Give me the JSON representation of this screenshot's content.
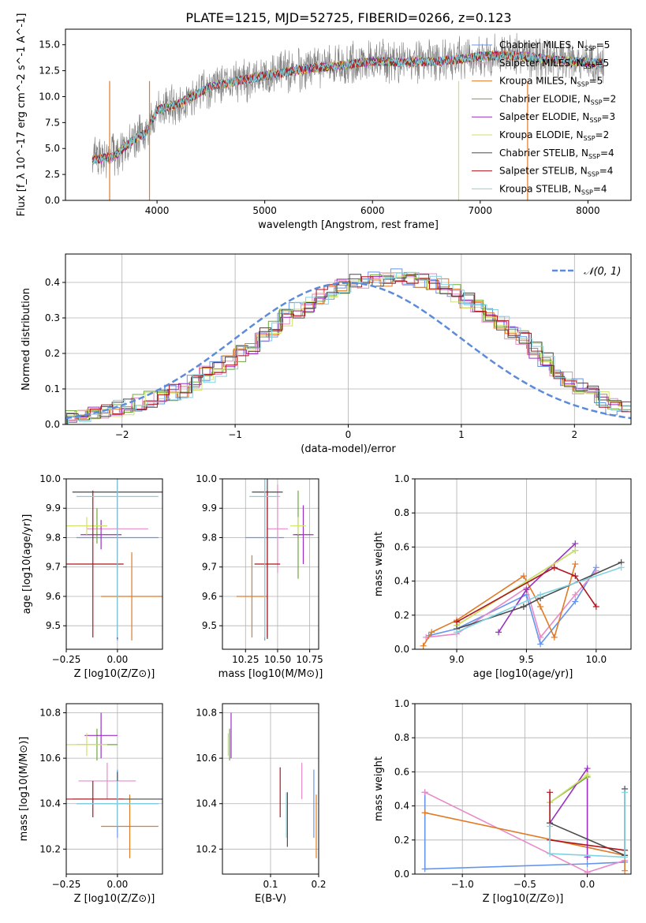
{
  "figure_title": "PLATE=1215, MJD=52725, FIBERID=0266, z=0.123",
  "colors": {
    "Chabrier MILES": "#6495ed",
    "Salpeter MILES": "#e88ac8",
    "Kroupa MILES": "#e07b27",
    "Chabrier ELODIE": "#6fa83c",
    "Salpeter ELODIE": "#9b30c0",
    "Kroupa ELODIE": "#cfe26a",
    "Chabrier STELIB": "#4a4a4a",
    "Salpeter STELIB": "#b0141c",
    "Kroupa STELIB": "#7fd3e0",
    "data": "#808080",
    "gaussian": "#5b8bd9"
  },
  "chart_data": [
    {
      "id": "spectrum",
      "type": "line",
      "title": "PLATE=1215, MJD=52725, FIBERID=0266, z=0.123",
      "xlabel": "wavelength [Angstrom, rest frame]",
      "ylabel": "Flux [f_λ 10^-17 erg cm^-2 s^-1 A^-1]",
      "xlim": [
        3150,
        8400
      ],
      "ylim": [
        0,
        16.5
      ],
      "xticks": [
        4000,
        5000,
        6000,
        7000,
        8000
      ],
      "yticks": [
        0.0,
        2.5,
        5.0,
        7.5,
        10.0,
        12.5,
        15.0
      ],
      "legend_position": "right",
      "legend": [
        {
          "label": "Chabrier MILES, N_SSP=5",
          "color": "#6495ed"
        },
        {
          "label": "Salpeter MILES, N_SSP=5",
          "color": "#e88ac8"
        },
        {
          "label": "Kroupa MILES, N_SSP=5",
          "color": "#e07b27"
        },
        {
          "label": "Chabrier ELODIE, N_SSP=2",
          "color": "#6fa83c"
        },
        {
          "label": "Salpeter ELODIE, N_SSP=3",
          "color": "#9b30c0"
        },
        {
          "label": "Kroupa ELODIE, N_SSP=2",
          "color": "#cfe26a"
        },
        {
          "label": "Chabrier STELIB, N_SSP=4",
          "color": "#4a4a4a"
        },
        {
          "label": "Salpeter STELIB, N_SSP=4",
          "color": "#b0141c"
        },
        {
          "label": "Kroupa STELIB, N_SSP=4",
          "color": "#7fd3e0"
        }
      ],
      "continuum_x": [
        3400,
        3600,
        3800,
        3900,
        4000,
        4200,
        4500,
        4800,
        5100,
        5400,
        5700,
        6000,
        6300,
        6600,
        6800,
        7000,
        7200,
        7400,
        7600,
        8000,
        8150
      ],
      "continuum_y": [
        3.9,
        4.2,
        6.0,
        6.5,
        8.7,
        9.3,
        11.0,
        11.6,
        12.2,
        12.7,
        13.0,
        13.4,
        13.3,
        13.4,
        13.6,
        13.9,
        14.0,
        13.9,
        13.6,
        13.3,
        13.2
      ]
    },
    {
      "id": "residual-histogram",
      "type": "bar",
      "xlabel": "(data-model)/error",
      "ylabel": "Normed distribution",
      "xlim": [
        -2.5,
        2.5
      ],
      "ylim": [
        0,
        0.48
      ],
      "xticks": [
        -2,
        -1,
        0,
        1,
        2
      ],
      "yticks": [
        0.0,
        0.1,
        0.2,
        0.3,
        0.4
      ],
      "legend": [
        {
          "label": "N(0,1)",
          "color": "#5b8bd9"
        }
      ],
      "bin_width": 0.1,
      "bin_start": -2.5,
      "heights": [
        0.025,
        0.03,
        0.035,
        0.04,
        0.045,
        0.05,
        0.06,
        0.07,
        0.08,
        0.09,
        0.1,
        0.12,
        0.14,
        0.16,
        0.18,
        0.2,
        0.22,
        0.25,
        0.27,
        0.3,
        0.32,
        0.34,
        0.36,
        0.37,
        0.39,
        0.4,
        0.4,
        0.41,
        0.41,
        0.42,
        0.41,
        0.41,
        0.4,
        0.39,
        0.37,
        0.35,
        0.33,
        0.31,
        0.29,
        0.26,
        0.24,
        0.21,
        0.18,
        0.15,
        0.13,
        0.11,
        0.09,
        0.07,
        0.05,
        0.04
      ]
    },
    {
      "id": "age-vs-z",
      "type": "scatter",
      "xlabel": "Z [log10(Z/Z⊙)]",
      "ylabel": "age [log10(age/yr)]",
      "xlim": [
        -0.25,
        0.22
      ],
      "ylim": [
        9.42,
        10.0
      ],
      "xticks": [
        -0.25,
        0.0
      ],
      "yticks": [
        9.5,
        9.6,
        9.7,
        9.8,
        9.9,
        10.0
      ],
      "points": [
        {
          "x": 0.0,
          "y": 9.8,
          "xerr": 0.2,
          "yerr": 0.35,
          "color": "#6495ed"
        },
        {
          "x": 0.0,
          "y": 9.83,
          "xerr": 0.15,
          "yerr": 0.15,
          "color": "#e88ac8"
        },
        {
          "x": 0.07,
          "y": 9.6,
          "xerr": 0.15,
          "yerr": 0.15,
          "color": "#e07b27"
        },
        {
          "x": -0.1,
          "y": 9.84,
          "xerr": 0.05,
          "yerr": 0.06,
          "color": "#6fa83c"
        },
        {
          "x": -0.08,
          "y": 9.81,
          "xerr": 0.1,
          "yerr": 0.05,
          "color": "#9b30c0"
        },
        {
          "x": -0.15,
          "y": 9.84,
          "xerr": 0.1,
          "yerr": 0.03,
          "color": "#cfe26a"
        },
        {
          "x": 0.0,
          "y": 9.955,
          "xerr": 0.22,
          "yerr": 0.5,
          "color": "#4a4a4a"
        },
        {
          "x": -0.12,
          "y": 9.71,
          "xerr": 0.15,
          "yerr": 0.25,
          "color": "#b0141c"
        },
        {
          "x": 0.0,
          "y": 9.94,
          "xerr": 0.2,
          "yerr": 0.48,
          "color": "#7fd3e0"
        }
      ]
    },
    {
      "id": "age-vs-mass",
      "type": "scatter",
      "xlabel": "mass [log10(M/M⊙)]",
      "ylabel": "",
      "xlim": [
        10.07,
        10.82
      ],
      "ylim": [
        9.42,
        10.0
      ],
      "xticks": [
        10.25,
        10.5,
        10.75
      ],
      "yticks": [
        9.5,
        9.6,
        9.7,
        9.8,
        9.9,
        10.0
      ],
      "points": [
        {
          "x": 10.4,
          "y": 9.8,
          "xerr": 0.15,
          "yerr": 0.35,
          "color": "#6495ed"
        },
        {
          "x": 10.5,
          "y": 9.83,
          "xerr": 0.08,
          "yerr": 0.15,
          "color": "#e88ac8"
        },
        {
          "x": 10.3,
          "y": 9.6,
          "xerr": 0.12,
          "yerr": 0.14,
          "color": "#e07b27"
        },
        {
          "x": 10.66,
          "y": 9.81,
          "xerr": 0.02,
          "yerr": 0.15,
          "color": "#6fa83c"
        },
        {
          "x": 10.7,
          "y": 9.81,
          "xerr": 0.08,
          "yerr": 0.1,
          "color": "#9b30c0"
        },
        {
          "x": 10.66,
          "y": 9.84,
          "xerr": 0.06,
          "yerr": 0.03,
          "color": "#cfe26a"
        },
        {
          "x": 10.42,
          "y": 9.955,
          "xerr": 0.12,
          "yerr": 0.5,
          "color": "#4a4a4a"
        },
        {
          "x": 10.42,
          "y": 9.71,
          "xerr": 0.1,
          "yerr": 0.25,
          "color": "#b0141c"
        },
        {
          "x": 10.4,
          "y": 9.94,
          "xerr": 0.12,
          "yerr": 0.48,
          "color": "#7fd3e0"
        }
      ]
    },
    {
      "id": "weight-vs-age",
      "type": "line",
      "xlabel": "age [log10(age/yr)]",
      "ylabel": "mass weight",
      "xlim": [
        8.7,
        10.25
      ],
      "ylim": [
        0,
        1.0
      ],
      "xticks": [
        9.0,
        9.5,
        10.0
      ],
      "yticks": [
        0.0,
        0.2,
        0.4,
        0.6,
        0.8,
        1.0
      ],
      "series": [
        {
          "color": "#6495ed",
          "x": [
            8.8,
            9.0,
            9.5,
            9.6,
            9.85,
            10.0
          ],
          "y": [
            0.08,
            0.12,
            0.32,
            0.03,
            0.28,
            0.48
          ]
        },
        {
          "color": "#e88ac8",
          "x": [
            8.78,
            9.0,
            9.5,
            9.6,
            9.85,
            10.0
          ],
          "y": [
            0.07,
            0.09,
            0.36,
            0.07,
            0.32,
            0.46
          ]
        },
        {
          "color": "#e07b27",
          "x": [
            8.76,
            8.82,
            9.0,
            9.48,
            9.6,
            9.7,
            9.85
          ],
          "y": [
            0.02,
            0.1,
            0.17,
            0.43,
            0.25,
            0.07,
            0.5
          ]
        },
        {
          "color": "#6fa83c",
          "x": [
            9.0,
            9.85
          ],
          "y": [
            0.14,
            0.58
          ]
        },
        {
          "color": "#9b30c0",
          "x": [
            9.3,
            9.5,
            9.85
          ],
          "y": [
            0.1,
            0.35,
            0.62
          ]
        },
        {
          "color": "#cfe26a",
          "x": [
            9.0,
            9.85
          ],
          "y": [
            0.14,
            0.58
          ]
        },
        {
          "color": "#4a4a4a",
          "x": [
            9.0,
            9.48,
            9.6,
            10.18
          ],
          "y": [
            0.12,
            0.25,
            0.3,
            0.51
          ]
        },
        {
          "color": "#b0141c",
          "x": [
            9.0,
            9.7,
            9.85,
            10.0
          ],
          "y": [
            0.16,
            0.48,
            0.43,
            0.25
          ]
        },
        {
          "color": "#7fd3e0",
          "x": [
            9.0,
            9.6,
            10.18
          ],
          "y": [
            0.1,
            0.32,
            0.48
          ]
        }
      ]
    },
    {
      "id": "mass-vs-z",
      "type": "scatter",
      "xlabel": "Z [log10(Z/Z⊙)]",
      "ylabel": "mass [log10(M/M⊙)]",
      "xlim": [
        -0.25,
        0.22
      ],
      "ylim": [
        10.09,
        10.84
      ],
      "xticks": [
        -0.25,
        0.0
      ],
      "yticks": [
        10.2,
        10.4,
        10.6,
        10.8
      ],
      "points": [
        {
          "x": 0.0,
          "y": 10.4,
          "xerr": 0.2,
          "yerr": 0.15,
          "color": "#6495ed"
        },
        {
          "x": -0.05,
          "y": 10.5,
          "xerr": 0.14,
          "yerr": 0.08,
          "color": "#e88ac8"
        },
        {
          "x": 0.06,
          "y": 10.3,
          "xerr": 0.14,
          "yerr": 0.14,
          "color": "#e07b27"
        },
        {
          "x": -0.1,
          "y": 10.66,
          "xerr": 0.1,
          "yerr": 0.07,
          "color": "#6fa83c"
        },
        {
          "x": -0.08,
          "y": 10.7,
          "xerr": 0.08,
          "yerr": 0.1,
          "color": "#9b30c0"
        },
        {
          "x": -0.15,
          "y": 10.66,
          "xerr": 0.1,
          "yerr": 0.05,
          "color": "#cfe26a"
        },
        {
          "x": 0.0,
          "y": 10.42,
          "xerr": 0.22,
          "yerr": 0.12,
          "color": "#4a4a4a"
        },
        {
          "x": -0.12,
          "y": 10.42,
          "xerr": 0.15,
          "yerr": 0.08,
          "color": "#b0141c"
        },
        {
          "x": 0.0,
          "y": 10.4,
          "xerr": 0.2,
          "yerr": 0.1,
          "color": "#7fd3e0"
        }
      ]
    },
    {
      "id": "mass-vs-ebv",
      "type": "scatter",
      "xlabel": "E(B-V)",
      "ylabel": "",
      "xlim": [
        0.0,
        0.2
      ],
      "ylim": [
        10.09,
        10.84
      ],
      "xticks": [
        0.1,
        0.2
      ],
      "yticks": [
        10.2,
        10.4,
        10.6,
        10.8
      ],
      "points": [
        {
          "x": 0.19,
          "y": 10.4,
          "yerr": 0.15,
          "color": "#6495ed"
        },
        {
          "x": 0.165,
          "y": 10.5,
          "yerr": 0.08,
          "color": "#e88ac8"
        },
        {
          "x": 0.195,
          "y": 10.3,
          "yerr": 0.14,
          "color": "#e07b27"
        },
        {
          "x": 0.015,
          "y": 10.66,
          "yerr": 0.07,
          "color": "#6fa83c"
        },
        {
          "x": 0.018,
          "y": 10.7,
          "yerr": 0.1,
          "color": "#9b30c0"
        },
        {
          "x": 0.012,
          "y": 10.66,
          "yerr": 0.05,
          "color": "#cfe26a"
        },
        {
          "x": 0.135,
          "y": 10.33,
          "yerr": 0.12,
          "color": "#4a4a4a"
        },
        {
          "x": 0.12,
          "y": 10.45,
          "yerr": 0.11,
          "color": "#b0141c"
        },
        {
          "x": 0.133,
          "y": 10.35,
          "yerr": 0.1,
          "color": "#7fd3e0"
        }
      ]
    },
    {
      "id": "weight-vs-z",
      "type": "line",
      "xlabel": "Z [log10(Z/Z⊙)]",
      "ylabel": "mass weight",
      "xlim": [
        -1.38,
        0.35
      ],
      "ylim": [
        0,
        1.0
      ],
      "xticks": [
        -1.0,
        -0.5,
        0.0
      ],
      "yticks": [
        0.0,
        0.2,
        0.4,
        0.6,
        0.8,
        1.0
      ],
      "series": [
        {
          "color": "#6495ed",
          "x": [
            -1.3,
            -1.3,
            0.0,
            0.3
          ],
          "y": [
            0.48,
            0.03,
            0.06,
            0.07
          ]
        },
        {
          "color": "#e88ac8",
          "x": [
            -1.3,
            0.0,
            0.3
          ],
          "y": [
            0.48,
            0.01,
            0.08
          ]
        },
        {
          "color": "#e07b27",
          "x": [
            -1.3,
            0.3,
            0.3
          ],
          "y": [
            0.36,
            0.11,
            0.02
          ]
        },
        {
          "color": "#6fa83c",
          "x": [
            -0.3,
            0.0
          ],
          "y": [
            0.42,
            0.57
          ]
        },
        {
          "color": "#9b30c0",
          "x": [
            -0.3,
            0.0,
            0.0
          ],
          "y": [
            0.3,
            0.62,
            0.1
          ]
        },
        {
          "color": "#cfe26a",
          "x": [
            -0.3,
            0.0
          ],
          "y": [
            0.42,
            0.58
          ]
        },
        {
          "color": "#4a4a4a",
          "x": [
            -0.3,
            0.3,
            0.3
          ],
          "y": [
            0.3,
            0.11,
            0.5
          ]
        },
        {
          "color": "#b0141c",
          "x": [
            -0.3,
            -0.3,
            0.3
          ],
          "y": [
            0.48,
            0.2,
            0.14
          ]
        },
        {
          "color": "#7fd3e0",
          "x": [
            -0.3,
            -0.3,
            0.3,
            0.3
          ],
          "y": [
            0.28,
            0.12,
            0.1,
            0.48
          ]
        }
      ]
    }
  ]
}
